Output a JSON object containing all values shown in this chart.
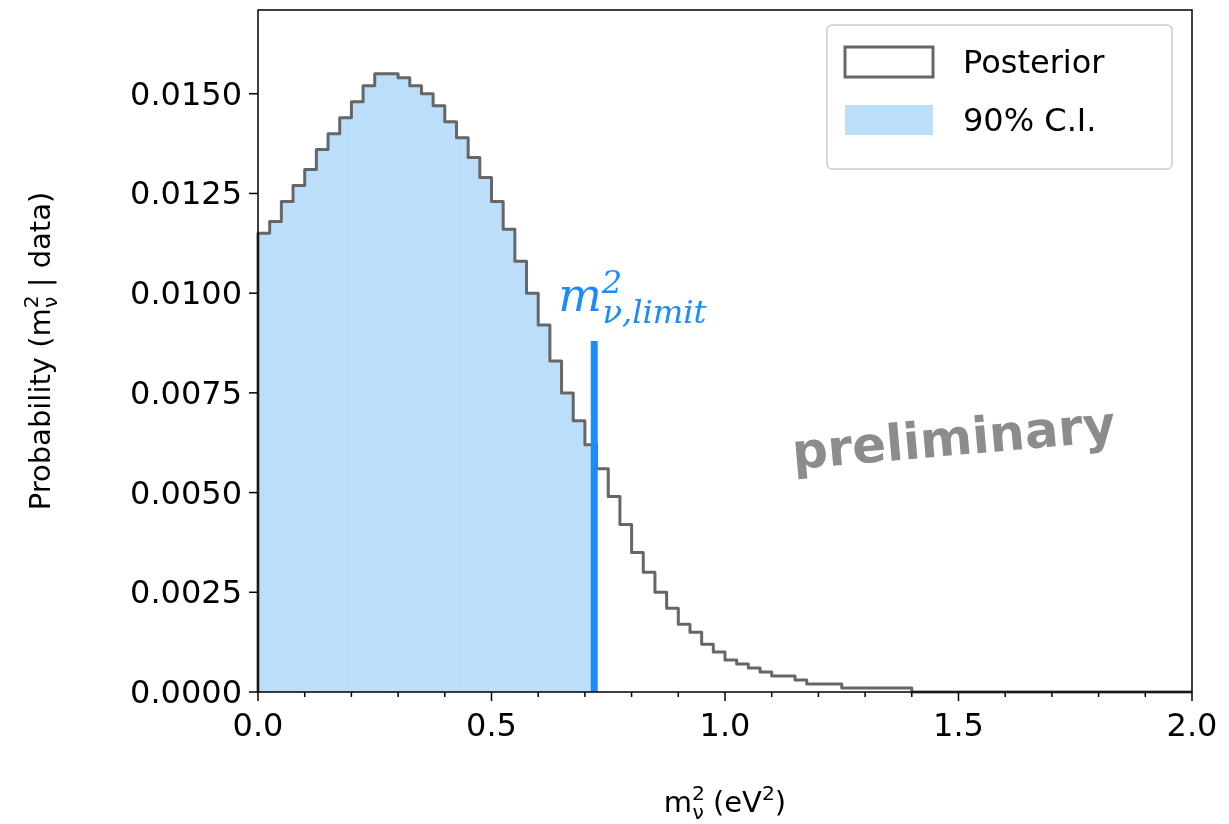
{
  "chart_data": {
    "type": "histogram",
    "xlabel": "m$^{2}$$_{ν}$ (eV$^{2}$)",
    "ylabel": "Probability (m$^{2}$$_{ν}$ | data)",
    "bins": [
      0,
      0.025,
      0.05,
      0.075,
      0.1,
      0.125,
      0.15,
      0.175,
      0.2,
      0.225,
      0.25,
      0.275,
      0.3,
      0.325,
      0.35,
      0.375,
      0.4,
      0.425,
      0.45,
      0.475,
      0.5,
      0.525,
      0.55,
      0.575,
      0.6,
      0.625,
      0.65,
      0.675,
      0.7,
      0.72,
      0.725,
      0.75,
      0.775,
      0.8,
      0.825,
      0.85,
      0.875,
      0.9,
      0.925,
      0.95,
      0.975,
      1.0,
      1.025,
      1.05,
      1.075,
      1.1,
      1.125,
      1.15,
      1.175,
      1.2,
      1.225,
      1.25,
      1.275,
      1.3,
      1.325,
      1.35,
      1.375,
      1.4,
      2.0
    ],
    "series": [
      {
        "name": "Posterior",
        "color": "#666666",
        "line_style": "solid",
        "values": [
          0.0115,
          0.0118,
          0.0123,
          0.0127,
          0.0131,
          0.0136,
          0.014,
          0.0144,
          0.0148,
          0.0152,
          0.0155,
          0.0155,
          0.0154,
          0.0152,
          0.015,
          0.0147,
          0.0143,
          0.0139,
          0.0134,
          0.0129,
          0.0123,
          0.0116,
          0.0108,
          0.01,
          0.0092,
          0.0083,
          0.0075,
          0.0068,
          0.0062,
          0.0062,
          0.0056,
          0.0049,
          0.0042,
          0.0035,
          0.003,
          0.0025,
          0.0021,
          0.0017,
          0.0015,
          0.0012,
          0.001,
          0.0008,
          0.0007,
          0.0006,
          0.0005,
          0.0004,
          0.0004,
          0.0003,
          0.0002,
          0.0002,
          0.0002,
          0.0001,
          0.0001,
          0.0001,
          0.0001,
          0.0001,
          0.0001,
          0
        ]
      },
      {
        "name": "90% C.I.",
        "color": "#bbdefb",
        "values": [
          0.0115,
          0.0118,
          0.0123,
          0.0127,
          0.0131,
          0.0136,
          0.014,
          0.0144,
          0.0148,
          0.0152,
          0.0155,
          0.0155,
          0.0154,
          0.0152,
          0.015,
          0.0147,
          0.0143,
          0.0139,
          0.0134,
          0.0129,
          0.0123,
          0.0116,
          0.0108,
          0.01,
          0.0092,
          0.0083,
          0.0075,
          0.0068,
          0.0062,
          null,
          null,
          null,
          null,
          null,
          null,
          null,
          null,
          null,
          null,
          null,
          null,
          null,
          null,
          null,
          null,
          null,
          null,
          null,
          null,
          null,
          null,
          null,
          null,
          null,
          null,
          null,
          null,
          null
        ]
      }
    ],
    "ref_lines": [
      {
        "axis": "x",
        "value": 0.72,
        "label": "m$^{2}$$_{ν,limit}$",
        "color": "#1a8cff"
      }
    ],
    "xlim": [
      0,
      2
    ],
    "xticks": [
      {
        "value": 0,
        "label": "0.0"
      },
      {
        "value": 0.1,
        "label": null
      },
      {
        "value": 0.2,
        "label": null
      },
      {
        "value": 0.3,
        "label": null
      },
      {
        "value": 0.4,
        "label": null
      },
      {
        "value": 0.5,
        "label": "0.5"
      },
      {
        "value": 0.6,
        "label": null
      },
      {
        "value": 0.7,
        "label": null
      },
      {
        "value": 0.8,
        "label": null
      },
      {
        "value": 0.9,
        "label": null
      },
      {
        "value": 1.0,
        "label": "1.0"
      },
      {
        "value": 1.1,
        "label": null
      },
      {
        "value": 1.2,
        "label": null
      },
      {
        "value": 1.3,
        "label": null
      },
      {
        "value": 1.4,
        "label": null
      },
      {
        "value": 1.5,
        "label": "1.5"
      },
      {
        "value": 1.6,
        "label": null
      },
      {
        "value": 1.7,
        "label": null
      },
      {
        "value": 1.8,
        "label": null
      },
      {
        "value": 1.9,
        "label": null
      },
      {
        "value": 2.0,
        "label": "2.0"
      }
    ],
    "ylim": [
      0,
      0.0171
    ],
    "yticks": [
      {
        "value": 0,
        "label": "0.0000"
      },
      {
        "value": 0.0025,
        "label": "0.0025"
      },
      {
        "value": 0.005,
        "label": "0.0050"
      },
      {
        "value": 0.0075,
        "label": "0.0075"
      },
      {
        "value": 0.01,
        "label": "0.0100"
      },
      {
        "value": 0.0125,
        "label": "0.0125"
      },
      {
        "value": 0.015,
        "label": "0.0150"
      }
    ],
    "annotations": [
      "preliminary"
    ],
    "legend": "top right",
    "grid": false
  }
}
